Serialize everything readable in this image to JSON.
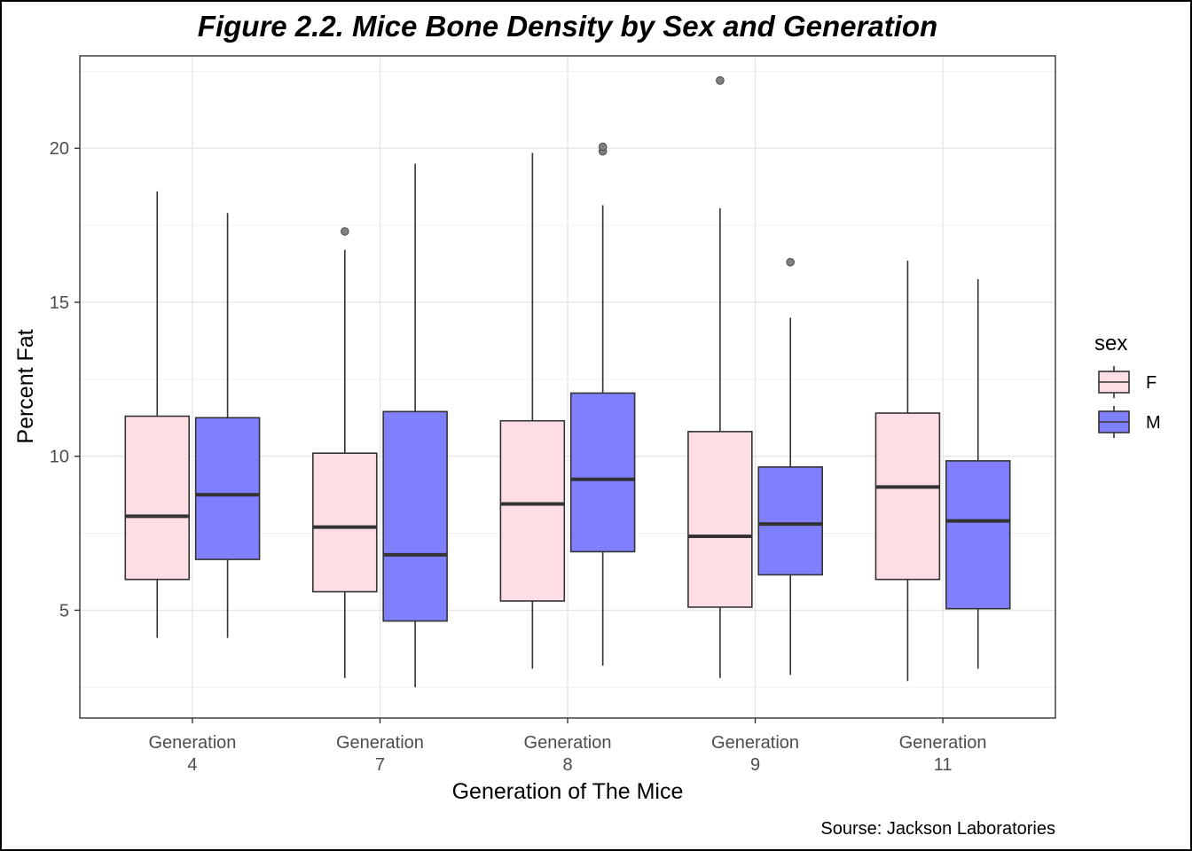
{
  "chart_data": {
    "type": "boxplot",
    "title": "Figure 2.2. Mice Bone Density by Sex and Generation",
    "xlabel": "Generation of The Mice",
    "ylabel": "Percent Fat",
    "caption": "Sourse: Jackson Laboratories",
    "ylim": [
      1.5,
      23
    ],
    "yticks": [
      5,
      10,
      15,
      20
    ],
    "grid": true,
    "legend": {
      "title": "sex",
      "placement": "right"
    },
    "categories": [
      {
        "line1": "Generation",
        "line2": "4"
      },
      {
        "line1": "Generation",
        "line2": "7"
      },
      {
        "line1": "Generation",
        "line2": "8"
      },
      {
        "line1": "Generation",
        "line2": "9"
      },
      {
        "line1": "Generation",
        "line2": "11"
      }
    ],
    "series": [
      {
        "name": "F",
        "color": "#ffdde4",
        "boxes": [
          {
            "min": 4.1,
            "q1": 6.0,
            "median": 8.05,
            "q3": 11.3,
            "max": 18.6,
            "outliers": []
          },
          {
            "min": 2.8,
            "q1": 5.6,
            "median": 7.7,
            "q3": 10.1,
            "max": 16.7,
            "outliers": [
              17.3
            ]
          },
          {
            "min": 3.1,
            "q1": 5.3,
            "median": 8.45,
            "q3": 11.15,
            "max": 19.85,
            "outliers": []
          },
          {
            "min": 2.8,
            "q1": 5.1,
            "median": 7.4,
            "q3": 10.8,
            "max": 18.05,
            "outliers": [
              22.2
            ]
          },
          {
            "min": 2.7,
            "q1": 6.0,
            "median": 9.0,
            "q3": 11.4,
            "max": 16.35,
            "outliers": []
          }
        ]
      },
      {
        "name": "M",
        "color": "#8080ff",
        "boxes": [
          {
            "min": 4.1,
            "q1": 6.65,
            "median": 8.75,
            "q3": 11.25,
            "max": 17.9,
            "outliers": []
          },
          {
            "min": 2.5,
            "q1": 4.65,
            "median": 6.8,
            "q3": 11.45,
            "max": 19.5,
            "outliers": []
          },
          {
            "min": 3.2,
            "q1": 6.9,
            "median": 9.25,
            "q3": 12.05,
            "max": 18.15,
            "outliers": [
              19.9,
              20.05
            ]
          },
          {
            "min": 2.9,
            "q1": 6.15,
            "median": 7.8,
            "q3": 9.65,
            "max": 14.5,
            "outliers": [
              16.3
            ]
          },
          {
            "min": 3.1,
            "q1": 5.05,
            "median": 7.9,
            "q3": 9.85,
            "max": 15.75,
            "outliers": []
          }
        ]
      }
    ]
  }
}
